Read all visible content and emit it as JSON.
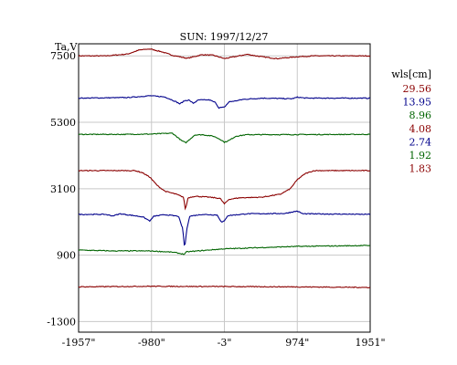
{
  "chart_data": {
    "type": "line",
    "title": "SUN: 1997/12/27",
    "ylabel": "Ta,V",
    "xlabel": "",
    "x_ticks": [
      "-1957\"",
      "-980\"",
      "-3\"",
      "974\"",
      "1951\""
    ],
    "x_tick_values": [
      -1957,
      -980,
      -3,
      974,
      1951
    ],
    "xlim": [
      -1957,
      1951
    ],
    "y_ticks": [
      "7500",
      "5300",
      "3100",
      "900",
      "-1300"
    ],
    "y_tick_values": [
      7500,
      5300,
      3100,
      900,
      -1300
    ],
    "ylim": [
      -1650,
      7900
    ],
    "grid": true,
    "legend": {
      "title": "wls[cm]",
      "position": "right",
      "entries": [
        {
          "label": "29.56",
          "color": "#8b0000"
        },
        {
          "label": "13.95",
          "color": "#00008b"
        },
        {
          "label": "8.96",
          "color": "#006400"
        },
        {
          "label": "4.08",
          "color": "#8b0000"
        },
        {
          "label": "2.74",
          "color": "#00008b"
        },
        {
          "label": "1.92",
          "color": "#006400"
        },
        {
          "label": "1.83",
          "color": "#8b0000"
        }
      ]
    },
    "series": [
      {
        "wavelength": "29.56",
        "color": "#8b0000",
        "baseline": 7500,
        "features": [
          [
            -1957,
            0
          ],
          [
            -1600,
            0
          ],
          [
            -1300,
            60
          ],
          [
            -1150,
            190
          ],
          [
            -1000,
            230
          ],
          [
            -850,
            140
          ],
          [
            -700,
            20
          ],
          [
            -500,
            -80
          ],
          [
            -300,
            40
          ],
          [
            -150,
            20
          ],
          [
            -3,
            -90
          ],
          [
            150,
            -20
          ],
          [
            300,
            50
          ],
          [
            500,
            -30
          ],
          [
            700,
            -90
          ],
          [
            974,
            -30
          ],
          [
            1200,
            0
          ],
          [
            1951,
            0
          ]
        ]
      },
      {
        "wavelength": "13.95",
        "color": "#00008b",
        "baseline": 6100,
        "features": [
          [
            -1957,
            0
          ],
          [
            -1300,
            20
          ],
          [
            -1000,
            80
          ],
          [
            -800,
            40
          ],
          [
            -650,
            -120
          ],
          [
            -600,
            -190
          ],
          [
            -540,
            -90
          ],
          [
            -480,
            -60
          ],
          [
            -420,
            -170
          ],
          [
            -350,
            -60
          ],
          [
            -200,
            -60
          ],
          [
            -120,
            -150
          ],
          [
            -80,
            -320
          ],
          [
            -3,
            -300
          ],
          [
            60,
            -120
          ],
          [
            150,
            -90
          ],
          [
            250,
            -40
          ],
          [
            500,
            0
          ],
          [
            900,
            -20
          ],
          [
            974,
            30
          ],
          [
            1100,
            0
          ],
          [
            1951,
            0
          ]
        ]
      },
      {
        "wavelength": "8.96",
        "color": "#006400",
        "baseline": 4900,
        "features": [
          [
            -1957,
            0
          ],
          [
            -1400,
            0
          ],
          [
            -1000,
            10
          ],
          [
            -700,
            40
          ],
          [
            -580,
            -200
          ],
          [
            -520,
            -280
          ],
          [
            -470,
            -170
          ],
          [
            -400,
            -20
          ],
          [
            -300,
            -10
          ],
          [
            -150,
            -60
          ],
          [
            -60,
            -160
          ],
          [
            -3,
            -260
          ],
          [
            60,
            -200
          ],
          [
            150,
            -60
          ],
          [
            300,
            -10
          ],
          [
            1951,
            0
          ]
        ]
      },
      {
        "wavelength": "4.08",
        "color": "#8b0000",
        "baseline": 3700,
        "features": [
          [
            -1957,
            0
          ],
          [
            -1200,
            0
          ],
          [
            -1100,
            -70
          ],
          [
            -1000,
            -220
          ],
          [
            -900,
            -500
          ],
          [
            -800,
            -680
          ],
          [
            -650,
            -780
          ],
          [
            -550,
            -880
          ],
          [
            -525,
            -1300
          ],
          [
            -490,
            -900
          ],
          [
            -400,
            -850
          ],
          [
            -200,
            -880
          ],
          [
            -60,
            -920
          ],
          [
            -3,
            -1100
          ],
          [
            60,
            -950
          ],
          [
            200,
            -900
          ],
          [
            500,
            -880
          ],
          [
            750,
            -780
          ],
          [
            880,
            -600
          ],
          [
            974,
            -300
          ],
          [
            1080,
            -100
          ],
          [
            1200,
            0
          ],
          [
            1951,
            0
          ]
        ]
      },
      {
        "wavelength": "2.74",
        "color": "#00008b",
        "baseline": 2250,
        "features": [
          [
            -1957,
            0
          ],
          [
            -1600,
            0
          ],
          [
            -1500,
            -50
          ],
          [
            -1400,
            20
          ],
          [
            -1100,
            -80
          ],
          [
            -1000,
            -220
          ],
          [
            -950,
            -60
          ],
          [
            -800,
            -10
          ],
          [
            -620,
            -60
          ],
          [
            -560,
            -480
          ],
          [
            -535,
            -1150
          ],
          [
            -510,
            -550
          ],
          [
            -470,
            -60
          ],
          [
            -300,
            0
          ],
          [
            -100,
            -20
          ],
          [
            -40,
            -260
          ],
          [
            -3,
            -220
          ],
          [
            40,
            -40
          ],
          [
            300,
            20
          ],
          [
            800,
            30
          ],
          [
            974,
            110
          ],
          [
            1050,
            20
          ],
          [
            1951,
            0
          ]
        ]
      },
      {
        "wavelength": "1.92",
        "color": "#006400",
        "baseline": 1070,
        "features": [
          [
            -1957,
            0
          ],
          [
            -1500,
            -30
          ],
          [
            -1000,
            -30
          ],
          [
            -700,
            -70
          ],
          [
            -540,
            -140
          ],
          [
            -510,
            -60
          ],
          [
            -3,
            40
          ],
          [
            974,
            120
          ],
          [
            1951,
            150
          ]
        ]
      },
      {
        "wavelength": "1.83",
        "color": "#8b0000",
        "baseline": -150,
        "features": [
          [
            -1957,
            0
          ],
          [
            -1000,
            20
          ],
          [
            -3,
            10
          ],
          [
            974,
            0
          ],
          [
            1951,
            -20
          ]
        ]
      }
    ]
  }
}
